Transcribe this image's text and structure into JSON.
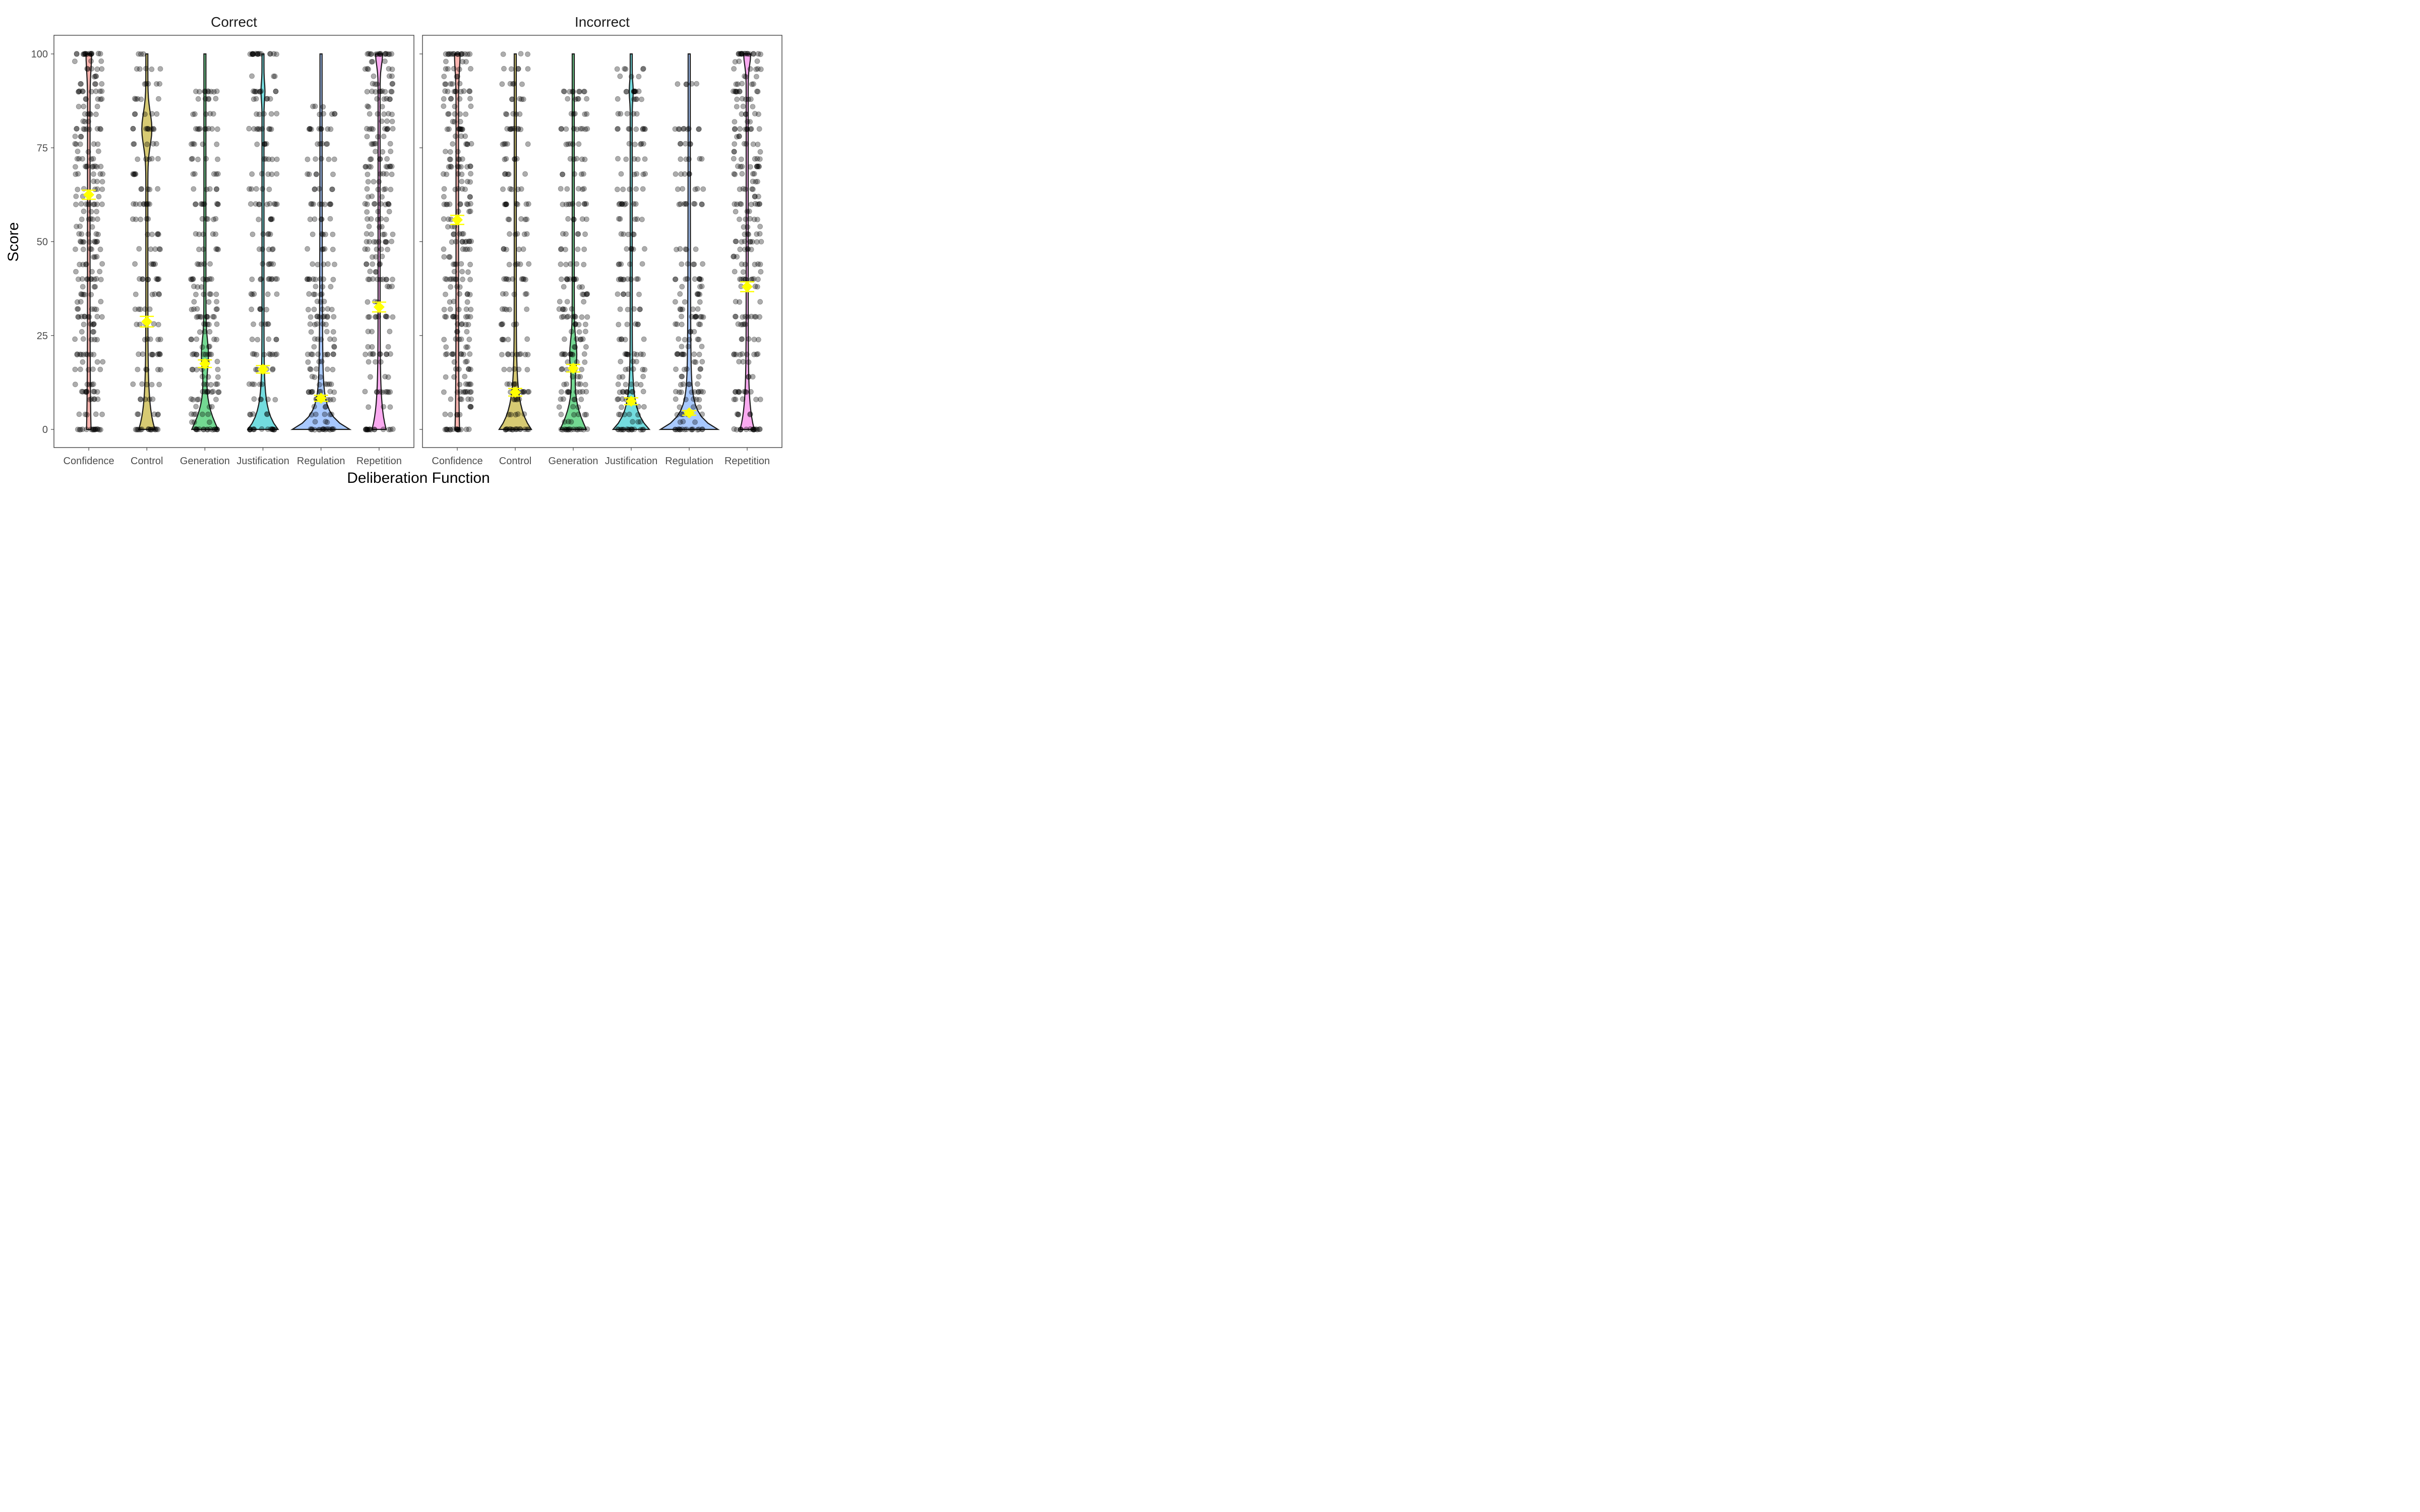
{
  "chart_data": {
    "type": "violin",
    "xlabel": "Deliberation Function",
    "ylabel": "Score",
    "ylim": [
      0,
      100
    ],
    "y_ticks": [
      0,
      25,
      50,
      75,
      100
    ],
    "categories": [
      "Confidence",
      "Control",
      "Generation",
      "Justification",
      "Regulation",
      "Repetition"
    ],
    "colors": {
      "Confidence": "#F8766D",
      "Control": "#B79F00",
      "Generation": "#00BA38",
      "Justification": "#00BFC4",
      "Regulation": "#619CFF",
      "Repetition": "#F564E3",
      "mean_marker": "#FFFF00",
      "points": "#000000"
    },
    "grid": false,
    "legend": "none",
    "panels": [
      {
        "title": "Correct",
        "series": [
          {
            "category": "Confidence",
            "mean": 62.5,
            "se": 1.2,
            "values": [
              0,
              4,
              8,
              10,
              12,
              16,
              18,
              20,
              24,
              26,
              28,
              30,
              32,
              34,
              36,
              38,
              40,
              42,
              44,
              46,
              48,
              50,
              52,
              54,
              56,
              58,
              60,
              62,
              64,
              66,
              68,
              70,
              72,
              74,
              76,
              78,
              80,
              82,
              84,
              86,
              88,
              90,
              92,
              94,
              96,
              98,
              100
            ]
          },
          {
            "category": "Control",
            "mean": 28.7,
            "se": 1.4,
            "values": [
              0,
              4,
              8,
              12,
              16,
              20,
              24,
              28,
              32,
              36,
              40,
              44,
              48,
              52,
              56,
              60,
              64,
              68,
              72,
              76,
              80,
              84,
              88,
              92,
              96,
              100
            ]
          },
          {
            "category": "Generation",
            "mean": 17.5,
            "se": 1.0,
            "values": [
              0,
              2,
              4,
              6,
              8,
              10,
              12,
              14,
              16,
              18,
              20,
              22,
              24,
              26,
              28,
              30,
              32,
              34,
              36,
              38,
              40,
              44,
              48,
              52,
              56,
              60,
              64,
              68,
              72,
              76,
              80,
              84,
              88,
              90
            ]
          },
          {
            "category": "Justification",
            "mean": 16.0,
            "se": 1.0,
            "values": [
              0,
              4,
              8,
              12,
              16,
              20,
              24,
              28,
              32,
              36,
              40,
              44,
              48,
              52,
              56,
              60,
              64,
              68,
              72,
              76,
              80,
              84,
              88,
              90,
              94,
              100
            ]
          },
          {
            "category": "Regulation",
            "mean": 8.3,
            "se": 0.8,
            "values": [
              0,
              2,
              4,
              6,
              8,
              10,
              12,
              14,
              16,
              18,
              20,
              22,
              24,
              26,
              28,
              30,
              32,
              34,
              36,
              38,
              40,
              44,
              48,
              52,
              56,
              60,
              64,
              68,
              72,
              76,
              80,
              84,
              86
            ]
          },
          {
            "category": "Repetition",
            "mean": 32.6,
            "se": 1.3,
            "values": [
              0,
              6,
              10,
              14,
              18,
              20,
              22,
              26,
              30,
              34,
              38,
              40,
              42,
              44,
              46,
              48,
              50,
              52,
              54,
              56,
              58,
              60,
              62,
              64,
              66,
              68,
              70,
              72,
              74,
              76,
              78,
              80,
              82,
              84,
              86,
              88,
              90,
              92,
              94,
              96,
              98,
              100
            ]
          }
        ]
      },
      {
        "title": "Incorrect",
        "series": [
          {
            "category": "Confidence",
            "mean": 55.8,
            "se": 1.2,
            "values": [
              0,
              4,
              6,
              8,
              10,
              12,
              14,
              16,
              18,
              20,
              22,
              24,
              26,
              28,
              30,
              32,
              34,
              36,
              38,
              40,
              42,
              44,
              46,
              48,
              50,
              52,
              54,
              56,
              58,
              60,
              62,
              64,
              66,
              68,
              70,
              72,
              74,
              76,
              78,
              80,
              82,
              84,
              86,
              88,
              90,
              92,
              94,
              96,
              98,
              100
            ]
          },
          {
            "category": "Control",
            "mean": 9.9,
            "se": 1.0,
            "values": [
              0,
              4,
              8,
              10,
              12,
              16,
              20,
              24,
              28,
              32,
              36,
              40,
              44,
              48,
              52,
              56,
              60,
              64,
              68,
              72,
              76,
              80,
              84,
              88,
              92,
              96,
              100
            ]
          },
          {
            "category": "Generation",
            "mean": 16.3,
            "se": 1.0,
            "values": [
              0,
              2,
              4,
              6,
              8,
              10,
              12,
              14,
              16,
              18,
              20,
              22,
              24,
              26,
              28,
              30,
              32,
              34,
              36,
              38,
              40,
              44,
              48,
              52,
              56,
              60,
              64,
              68,
              72,
              76,
              80,
              84,
              88,
              90
            ]
          },
          {
            "category": "Justification",
            "mean": 7.5,
            "se": 0.9,
            "values": [
              0,
              2,
              4,
              6,
              8,
              10,
              12,
              14,
              16,
              18,
              20,
              24,
              28,
              32,
              36,
              40,
              44,
              48,
              52,
              56,
              60,
              64,
              68,
              72,
              76,
              80,
              84,
              88,
              90,
              94,
              96
            ]
          },
          {
            "category": "Regulation",
            "mean": 4.4,
            "se": 0.6,
            "values": [
              0,
              2,
              4,
              6,
              8,
              10,
              12,
              14,
              16,
              18,
              20,
              22,
              24,
              26,
              28,
              30,
              32,
              34,
              36,
              38,
              40,
              44,
              48,
              60,
              64,
              68,
              72,
              76,
              80,
              92
            ]
          },
          {
            "category": "Repetition",
            "mean": 38.0,
            "se": 1.3,
            "values": [
              0,
              4,
              8,
              10,
              14,
              18,
              20,
              24,
              28,
              30,
              34,
              38,
              40,
              42,
              44,
              46,
              48,
              50,
              52,
              54,
              56,
              58,
              60,
              62,
              64,
              66,
              68,
              70,
              72,
              74,
              76,
              78,
              80,
              82,
              84,
              86,
              88,
              90,
              92,
              94,
              96,
              98,
              100
            ]
          }
        ]
      }
    ]
  }
}
